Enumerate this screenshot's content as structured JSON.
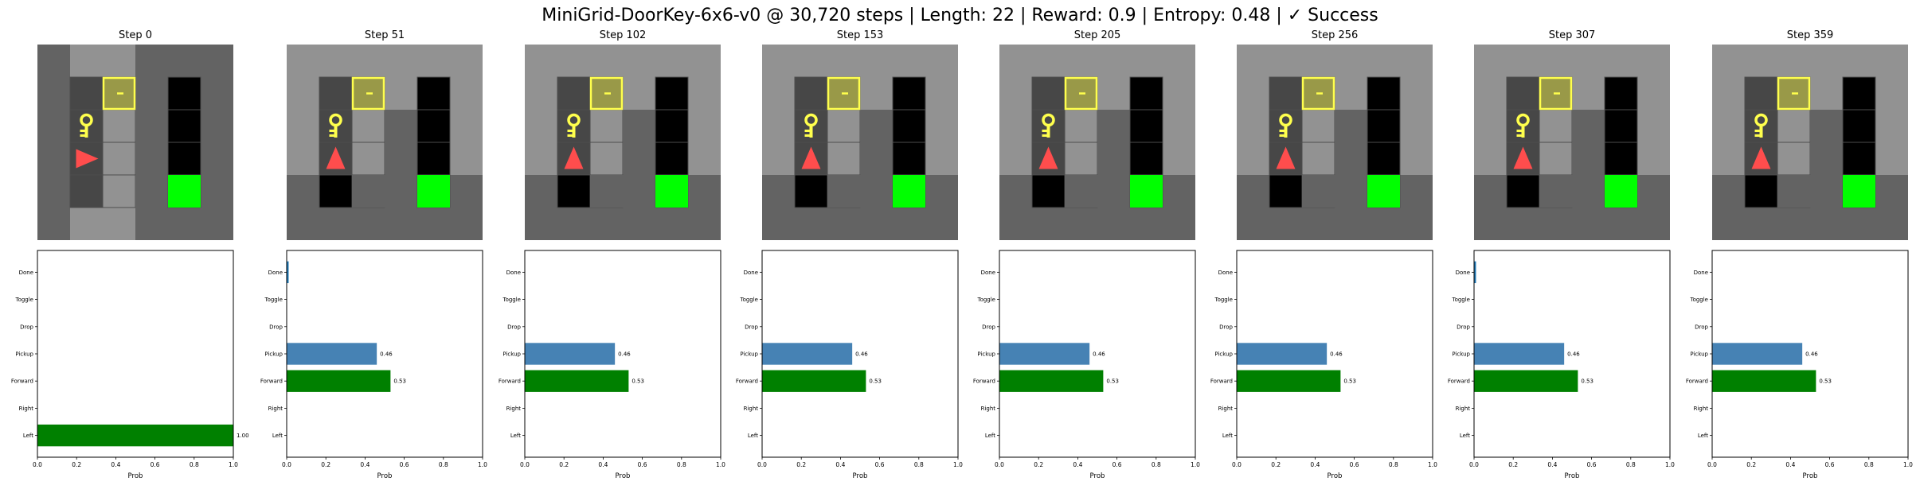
{
  "title": "MiniGrid-DoorKey-6x6-v0 @ 30,720 steps | Length: 22 | Reward: 0.9 | Entropy: 0.48 | ✓ Success",
  "colors": {
    "background": "#ffffff",
    "wall": "#636363",
    "unseen": "#636363",
    "visible_floor": "#929292",
    "black_floor": "#000000",
    "tile_line": "#4d4d4d",
    "locked_door": "#999948",
    "door_border": "#ffff4d",
    "key": "#ffff4d",
    "agent": "#ff4d4d",
    "goal": "#00ff00",
    "forward_bar": "#008000",
    "pickup_bar": "#4682b4",
    "other_bar": "#1f77b4"
  },
  "grid": {
    "size": 6,
    "goal": [
      4,
      4
    ],
    "door": [
      2,
      1
    ],
    "key": [
      1,
      2
    ],
    "wall_column": 3,
    "highlight_cols": [
      1,
      2
    ]
  },
  "actions": [
    "Left",
    "Right",
    "Forward",
    "Pickup",
    "Drop",
    "Toggle",
    "Done"
  ],
  "xticks": [
    "0.0",
    "0.2",
    "0.4",
    "0.6",
    "0.8",
    "1.0"
  ],
  "xlabel": "Prob",
  "steps": [
    {
      "title": "Step 0",
      "view": "vertical",
      "agent": {
        "pos": [
          1,
          3
        ],
        "dir": "right"
      },
      "chart_data": {
        "type": "bar",
        "orientation": "horizontal",
        "xlim": [
          0,
          1
        ],
        "values": [
          1.0,
          0,
          0,
          0,
          0,
          0,
          0
        ],
        "labels": {
          "0": "1.00"
        }
      }
    },
    {
      "title": "Step 51",
      "view": "horizontal",
      "agent": {
        "pos": [
          1,
          3
        ],
        "dir": "up"
      },
      "chart_data": {
        "type": "bar",
        "orientation": "horizontal",
        "xlim": [
          0,
          1
        ],
        "values": [
          0,
          0,
          0.53,
          0.46,
          0,
          0,
          0.01
        ],
        "labels": {
          "2": "0.53",
          "3": "0.46"
        }
      }
    },
    {
      "title": "Step 102",
      "view": "horizontal",
      "agent": {
        "pos": [
          1,
          3
        ],
        "dir": "up"
      },
      "chart_data": {
        "type": "bar",
        "orientation": "horizontal",
        "xlim": [
          0,
          1
        ],
        "values": [
          0,
          0,
          0.53,
          0.46,
          0,
          0,
          0
        ],
        "labels": {
          "2": "0.53",
          "3": "0.46"
        }
      }
    },
    {
      "title": "Step 153",
      "view": "horizontal",
      "agent": {
        "pos": [
          1,
          3
        ],
        "dir": "up"
      },
      "chart_data": {
        "type": "bar",
        "orientation": "horizontal",
        "xlim": [
          0,
          1
        ],
        "values": [
          0,
          0,
          0.53,
          0.46,
          0,
          0,
          0
        ],
        "labels": {
          "2": "0.53",
          "3": "0.46"
        }
      }
    },
    {
      "title": "Step 205",
      "view": "horizontal",
      "agent": {
        "pos": [
          1,
          3
        ],
        "dir": "up"
      },
      "chart_data": {
        "type": "bar",
        "orientation": "horizontal",
        "xlim": [
          0,
          1
        ],
        "values": [
          0,
          0,
          0.53,
          0.46,
          0,
          0,
          0
        ],
        "labels": {
          "2": "0.53",
          "3": "0.46"
        }
      }
    },
    {
      "title": "Step 256",
      "view": "horizontal",
      "agent": {
        "pos": [
          1,
          3
        ],
        "dir": "up"
      },
      "chart_data": {
        "type": "bar",
        "orientation": "horizontal",
        "xlim": [
          0,
          1
        ],
        "values": [
          0,
          0,
          0.53,
          0.46,
          0,
          0,
          0
        ],
        "labels": {
          "2": "0.53",
          "3": "0.46"
        }
      }
    },
    {
      "title": "Step 307",
      "view": "horizontal",
      "agent": {
        "pos": [
          1,
          3
        ],
        "dir": "up"
      },
      "chart_data": {
        "type": "bar",
        "orientation": "horizontal",
        "xlim": [
          0,
          1
        ],
        "values": [
          0,
          0,
          0.53,
          0.46,
          0,
          0,
          0.01
        ],
        "labels": {
          "2": "0.53",
          "3": "0.46"
        }
      }
    },
    {
      "title": "Step 359",
      "view": "horizontal",
      "agent": {
        "pos": [
          1,
          3
        ],
        "dir": "up"
      },
      "chart_data": {
        "type": "bar",
        "orientation": "horizontal",
        "xlim": [
          0,
          1
        ],
        "values": [
          0,
          0,
          0.53,
          0.46,
          0,
          0,
          0
        ],
        "labels": {
          "2": "0.53",
          "3": "0.46"
        }
      }
    }
  ]
}
